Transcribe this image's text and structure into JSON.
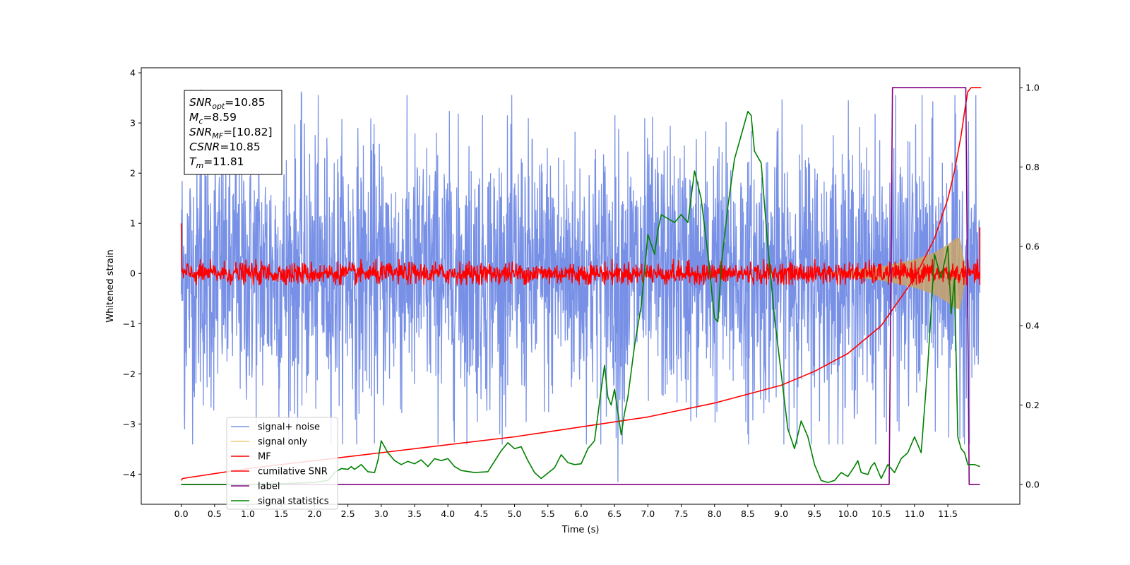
{
  "chart_data": {
    "type": "line",
    "xlabel": "Time (s)",
    "ylabel": "Whitened strain",
    "xlim": [
      -0.6,
      12.58
    ],
    "xticks": [
      0.0,
      0.5,
      1.0,
      1.5,
      2.0,
      2.5,
      3.0,
      3.5,
      4.0,
      4.5,
      5.0,
      5.5,
      6.0,
      6.5,
      7.0,
      7.5,
      8.0,
      8.5,
      9.0,
      9.5,
      10.0,
      10.5,
      11.0,
      11.5
    ],
    "xtick_labels": [
      "0.0",
      "0.5",
      "1.0",
      "1.5",
      "2.0",
      "2.5",
      "3.0",
      "3.5",
      "4.0",
      "4.5",
      "5.0",
      "5.5",
      "6.0",
      "6.5",
      "7.0",
      "7.5",
      "8.0",
      "8.5",
      "9.0",
      "9.5",
      "10.0",
      "10.5",
      "11.0",
      "11.5"
    ],
    "ylim_left": [
      -4.6,
      4.1
    ],
    "yticks_left": [
      4,
      3,
      2,
      1,
      0,
      -1,
      -2,
      -3,
      -4
    ],
    "ytick_labels_left": [
      "4",
      "3",
      "2",
      "1",
      "0",
      "−1",
      "−2",
      "−3",
      "−4"
    ],
    "ylim_right": [
      -0.05,
      1.05
    ],
    "yticks_right": [
      1.0,
      0.8,
      0.6,
      0.4,
      0.2,
      0.0
    ],
    "ytick_labels_right": [
      "1.0",
      "0.8",
      "0.6",
      "0.4",
      "0.2",
      "0.0"
    ],
    "grid": false,
    "legend_placement": "lower-left",
    "info_box": [
      {
        "base": "SNR",
        "sub": "opt",
        "value": "=10.85"
      },
      {
        "base": "M",
        "sub": "c",
        "value": "=8.59"
      },
      {
        "base": "SNR",
        "sub": "MF",
        "value": "=[10.82]"
      },
      {
        "base": "CSNR",
        "sub": "",
        "value": "=10.85"
      },
      {
        "base": "T",
        "sub": "m",
        "value": "=11.81"
      }
    ],
    "series": [
      {
        "name": "signal+ noise",
        "axis": "left",
        "color": "#7891e6",
        "style": "dense-noise",
        "band_median": 1.65,
        "extreme_spikes": [
          [
            0.05,
            -3.1
          ],
          [
            0.3,
            3.66
          ],
          [
            6.55,
            -4.15
          ],
          [
            1.8,
            3.62
          ],
          [
            8.5,
            -3.2
          ]
        ]
      },
      {
        "name": "signal only",
        "axis": "left",
        "color": "#f5c97a",
        "style": "chirp-envelope",
        "envelope": [
          [
            9.7,
            0.02
          ],
          [
            10.0,
            0.06
          ],
          [
            10.5,
            0.14
          ],
          [
            11.0,
            0.28
          ],
          [
            11.3,
            0.42
          ],
          [
            11.5,
            0.58
          ],
          [
            11.6,
            0.68
          ],
          [
            11.68,
            0.72
          ],
          [
            11.74,
            0.3
          ],
          [
            11.81,
            0.0
          ]
        ]
      },
      {
        "name": "MF",
        "axis": "left",
        "color": "#ff0000",
        "style": "noise-around-zero",
        "band_median": 0.12,
        "endpoints": [
          [
            0.0,
            1.0
          ],
          [
            11.98,
            0.92
          ]
        ]
      },
      {
        "name": "cumilative SNR",
        "axis": "right",
        "color": "#ff0000",
        "x": [
          0.0,
          0.02,
          1.0,
          2.0,
          3.0,
          4.0,
          5.0,
          6.0,
          7.0,
          8.0,
          9.0,
          9.5,
          10.0,
          10.5,
          11.0,
          11.3,
          11.5,
          11.6,
          11.7,
          11.76,
          11.8,
          11.85,
          11.9,
          12.0
        ],
        "values": [
          0.01,
          0.015,
          0.04,
          0.06,
          0.08,
          0.1,
          0.12,
          0.145,
          0.17,
          0.205,
          0.25,
          0.285,
          0.33,
          0.4,
          0.52,
          0.62,
          0.72,
          0.79,
          0.88,
          0.95,
          0.99,
          1.0,
          1.0,
          1.0
        ]
      },
      {
        "name": "label",
        "axis": "right",
        "color": "#800080",
        "x": [
          0.0,
          10.62,
          10.67,
          11.77,
          11.82,
          11.98
        ],
        "values": [
          0.0,
          0.0,
          1.0,
          1.0,
          0.0,
          0.0
        ]
      },
      {
        "name": "signal statistics",
        "axis": "right",
        "color": "#008000",
        "x": [
          0.0,
          0.5,
          1.0,
          1.5,
          2.0,
          2.2,
          2.3,
          2.4,
          2.5,
          2.55,
          2.6,
          2.7,
          2.8,
          2.9,
          2.95,
          3.0,
          3.1,
          3.2,
          3.3,
          3.4,
          3.5,
          3.6,
          3.7,
          3.8,
          3.9,
          4.0,
          4.1,
          4.2,
          4.4,
          4.6,
          4.8,
          4.9,
          5.0,
          5.1,
          5.2,
          5.3,
          5.4,
          5.6,
          5.7,
          5.8,
          5.9,
          6.0,
          6.1,
          6.2,
          6.3,
          6.35,
          6.4,
          6.45,
          6.5,
          6.6,
          6.65,
          6.7,
          6.8,
          6.9,
          7.0,
          7.1,
          7.15,
          7.2,
          7.3,
          7.4,
          7.5,
          7.6,
          7.7,
          7.8,
          7.9,
          8.0,
          8.05,
          8.1,
          8.2,
          8.3,
          8.4,
          8.5,
          8.55,
          8.6,
          8.7,
          8.8,
          8.9,
          9.0,
          9.1,
          9.2,
          9.3,
          9.4,
          9.5,
          9.6,
          9.7,
          9.8,
          9.9,
          10.0,
          10.1,
          10.15,
          10.2,
          10.3,
          10.35,
          10.4,
          10.5,
          10.6,
          10.7,
          10.8,
          10.9,
          11.0,
          11.1,
          11.2,
          11.3,
          11.4,
          11.5,
          11.55,
          11.6,
          11.65,
          11.7,
          11.75,
          11.8,
          11.9,
          11.98
        ],
        "values": [
          0.0,
          0.0,
          0.0,
          0.002,
          0.005,
          0.01,
          0.03,
          0.04,
          0.038,
          0.045,
          0.038,
          0.05,
          0.032,
          0.03,
          0.06,
          0.11,
          0.08,
          0.06,
          0.05,
          0.058,
          0.052,
          0.062,
          0.045,
          0.065,
          0.06,
          0.065,
          0.045,
          0.035,
          0.03,
          0.032,
          0.085,
          0.105,
          0.09,
          0.095,
          0.06,
          0.03,
          0.015,
          0.042,
          0.075,
          0.055,
          0.05,
          0.052,
          0.09,
          0.11,
          0.24,
          0.3,
          0.22,
          0.2,
          0.24,
          0.125,
          0.18,
          0.22,
          0.35,
          0.45,
          0.63,
          0.58,
          0.64,
          0.68,
          0.67,
          0.66,
          0.68,
          0.66,
          0.79,
          0.72,
          0.58,
          0.42,
          0.41,
          0.55,
          0.7,
          0.82,
          0.88,
          0.94,
          0.93,
          0.84,
          0.81,
          0.6,
          0.42,
          0.28,
          0.14,
          0.09,
          0.16,
          0.12,
          0.05,
          0.01,
          0.005,
          0.01,
          0.03,
          0.02,
          0.045,
          0.06,
          0.03,
          0.025,
          0.045,
          0.055,
          0.015,
          0.05,
          0.03,
          0.065,
          0.08,
          0.12,
          0.08,
          0.3,
          0.58,
          0.52,
          0.6,
          0.43,
          0.52,
          0.12,
          0.09,
          0.08,
          0.05,
          0.05,
          0.045
        ]
      }
    ]
  }
}
